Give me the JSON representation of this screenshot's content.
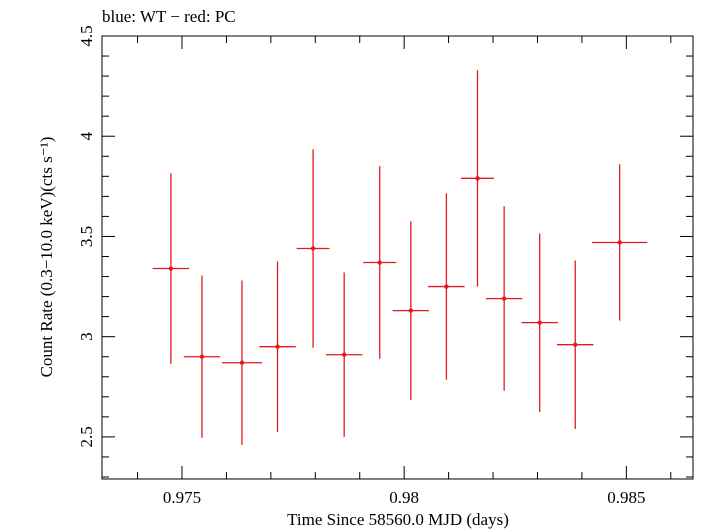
{
  "chart_data": {
    "type": "scatter",
    "title": "blue: WT − red: PC",
    "xlabel": "Time Since 58560.0 MJD (days)",
    "ylabel": "Count Rate (0.3−10.0 keV)(cts s⁻¹)",
    "xlim": [
      0.9732,
      0.9865
    ],
    "ylim": [
      2.29,
      4.5
    ],
    "xticks": [
      "0.975",
      "0.98",
      "0.985"
    ],
    "xtick_values": [
      0.975,
      0.98,
      0.985
    ],
    "yticks": [
      "2.5",
      "3",
      "3.5",
      "4",
      "4.5"
    ],
    "ytick_values": [
      2.5,
      3,
      3.5,
      4,
      4.5
    ],
    "series": [
      {
        "color": "#e31a1c",
        "points": [
          {
            "x": 0.97475,
            "xerr": 0.00041,
            "y": 3.34,
            "yerr": 0.475
          },
          {
            "x": 0.97545,
            "xerr": 0.00041,
            "y": 2.9,
            "yerr": 0.405
          },
          {
            "x": 0.97635,
            "xerr": 0.00045,
            "y": 2.87,
            "yerr": 0.41
          },
          {
            "x": 0.97715,
            "xerr": 0.00041,
            "y": 2.95,
            "yerr": 0.425
          },
          {
            "x": 0.97795,
            "xerr": 0.00037,
            "y": 3.44,
            "yerr": 0.495
          },
          {
            "x": 0.97865,
            "xerr": 0.00041,
            "y": 2.91,
            "yerr": 0.41
          },
          {
            "x": 0.97945,
            "xerr": 0.00037,
            "y": 3.37,
            "yerr": 0.48
          },
          {
            "x": 0.98015,
            "xerr": 0.00041,
            "y": 3.13,
            "yerr": 0.445
          },
          {
            "x": 0.98095,
            "xerr": 0.00041,
            "y": 3.25,
            "yerr": 0.465
          },
          {
            "x": 0.98165,
            "xerr": 0.00037,
            "y": 3.79,
            "yerr": 0.54
          },
          {
            "x": 0.98225,
            "xerr": 0.00041,
            "y": 3.19,
            "yerr": 0.46
          },
          {
            "x": 0.98305,
            "xerr": 0.00041,
            "y": 3.07,
            "yerr": 0.445
          },
          {
            "x": 0.98385,
            "xerr": 0.00041,
            "y": 2.96,
            "yerr": 0.42
          },
          {
            "x": 0.98485,
            "xerr": 0.00062,
            "y": 3.47,
            "yerr": 0.39
          }
        ]
      }
    ]
  }
}
